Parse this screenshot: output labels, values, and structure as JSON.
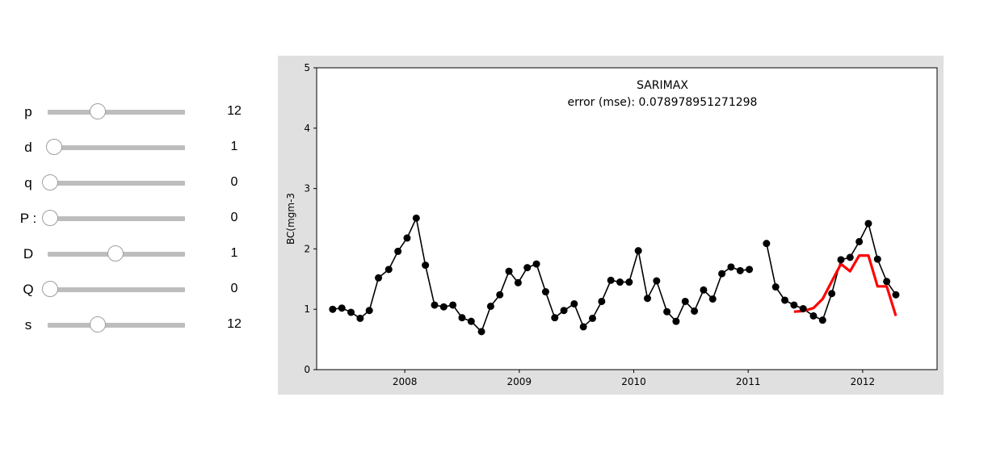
{
  "sliders": [
    {
      "label": "p",
      "value": "12",
      "min": 0,
      "max": 33
    },
    {
      "label": "d",
      "value": "1",
      "min": 0,
      "max": 33
    },
    {
      "label": "q",
      "value": "0",
      "min": 0,
      "max": 33
    },
    {
      "label": "P :",
      "value": "0",
      "min": 0,
      "max": 33
    },
    {
      "label": "D",
      "value": "1",
      "min": 0,
      "max": 2
    },
    {
      "label": "Q",
      "value": "0",
      "min": 0,
      "max": 33
    },
    {
      "label": "s",
      "value": "12",
      "min": 0,
      "max": 33
    }
  ],
  "chart_data": {
    "type": "line",
    "title": "SARIMAX",
    "subtitle": "error (mse): 0.078978951271298",
    "xlabel": "",
    "ylabel": "BC(mgm-3",
    "xlim": [
      2007.23,
      2012.65
    ],
    "ylim": [
      0,
      5
    ],
    "xticks": [
      "2008",
      "2009",
      "2010",
      "2011",
      "2012"
    ],
    "yticks": [
      "0",
      "1",
      "2",
      "3",
      "4",
      "5"
    ],
    "grid": false,
    "series": [
      {
        "role": "observed",
        "color": "#000000",
        "marker": "circle",
        "segments": [
          [
            [
              2007.37,
              1.0
            ],
            [
              2007.45,
              1.02
            ],
            [
              2007.53,
              0.95
            ],
            [
              2007.61,
              0.85
            ],
            [
              2007.69,
              0.98
            ],
            [
              2007.77,
              1.52
            ],
            [
              2007.86,
              1.66
            ],
            [
              2007.94,
              1.96
            ],
            [
              2008.02,
              2.18
            ],
            [
              2008.1,
              2.51
            ],
            [
              2008.18,
              1.73
            ],
            [
              2008.26,
              1.07
            ],
            [
              2008.34,
              1.04
            ],
            [
              2008.42,
              1.07
            ],
            [
              2008.5,
              0.86
            ],
            [
              2008.58,
              0.8
            ],
            [
              2008.67,
              0.63
            ],
            [
              2008.75,
              1.05
            ],
            [
              2008.83,
              1.24
            ],
            [
              2008.91,
              1.63
            ],
            [
              2008.99,
              1.44
            ],
            [
              2009.07,
              1.69
            ],
            [
              2009.15,
              1.75
            ],
            [
              2009.23,
              1.29
            ],
            [
              2009.31,
              0.86
            ],
            [
              2009.39,
              0.98
            ],
            [
              2009.48,
              1.09
            ],
            [
              2009.56,
              0.71
            ],
            [
              2009.64,
              0.85
            ],
            [
              2009.72,
              1.13
            ],
            [
              2009.8,
              1.48
            ],
            [
              2009.88,
              1.45
            ],
            [
              2009.96,
              1.45
            ],
            [
              2010.04,
              1.97
            ],
            [
              2010.12,
              1.18
            ],
            [
              2010.2,
              1.47
            ],
            [
              2010.29,
              0.96
            ],
            [
              2010.37,
              0.8
            ],
            [
              2010.45,
              1.13
            ],
            [
              2010.53,
              0.97
            ],
            [
              2010.61,
              1.32
            ],
            [
              2010.69,
              1.17
            ],
            [
              2010.77,
              1.59
            ],
            [
              2010.85,
              1.7
            ],
            [
              2010.93,
              1.64
            ],
            [
              2011.01,
              1.66
            ]
          ],
          [
            [
              2011.16,
              2.09
            ],
            [
              2011.24,
              1.37
            ],
            [
              2011.32,
              1.15
            ],
            [
              2011.4,
              1.07
            ],
            [
              2011.48,
              1.01
            ],
            [
              2011.57,
              0.89
            ],
            [
              2011.65,
              0.82
            ],
            [
              2011.73,
              1.26
            ],
            [
              2011.81,
              1.82
            ],
            [
              2011.89,
              1.86
            ],
            [
              2011.97,
              2.12
            ],
            [
              2012.05,
              2.42
            ],
            [
              2012.13,
              1.83
            ],
            [
              2012.21,
              1.46
            ],
            [
              2012.29,
              1.24
            ]
          ]
        ]
      },
      {
        "role": "forecast",
        "color": "#ff0000",
        "marker": "none",
        "points": [
          [
            2011.4,
            0.96
          ],
          [
            2011.48,
            0.97
          ],
          [
            2011.57,
            1.02
          ],
          [
            2011.65,
            1.17
          ],
          [
            2011.73,
            1.46
          ],
          [
            2011.81,
            1.75
          ],
          [
            2011.89,
            1.63
          ],
          [
            2011.97,
            1.89
          ],
          [
            2012.05,
            1.89
          ],
          [
            2012.13,
            1.38
          ],
          [
            2012.21,
            1.38
          ],
          [
            2012.29,
            0.89
          ]
        ]
      }
    ]
  }
}
